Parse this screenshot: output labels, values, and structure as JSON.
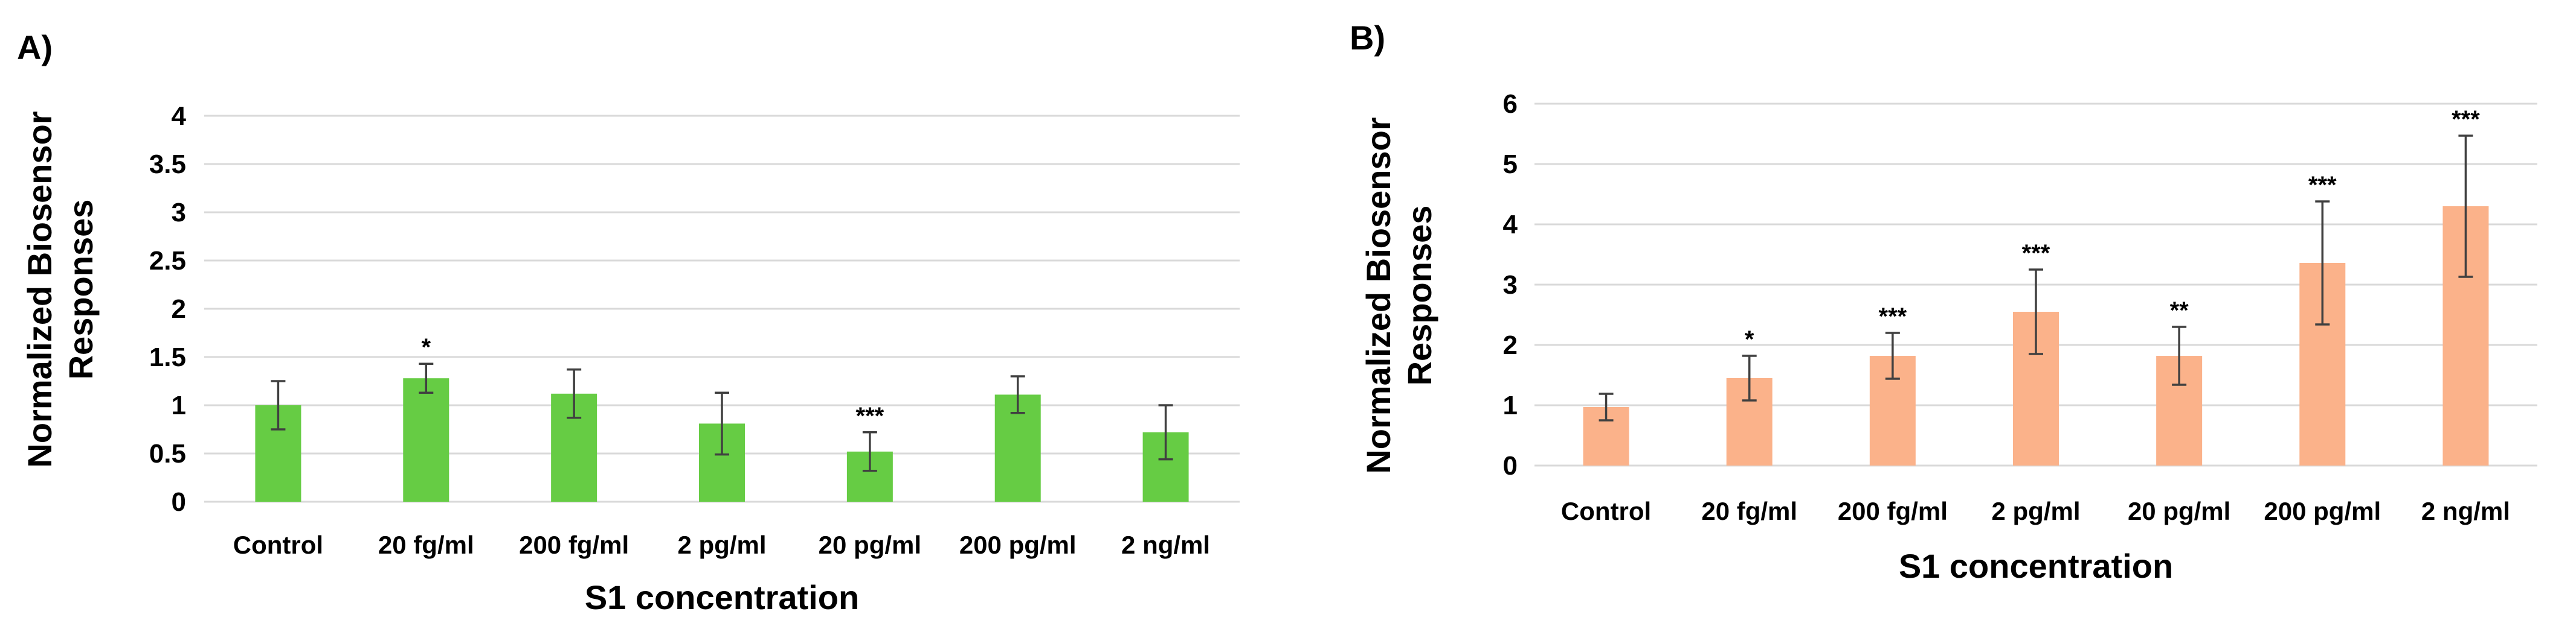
{
  "chart_data": [
    {
      "type": "bar",
      "panel_label": "A)",
      "title": "",
      "xlabel": "S1 concentration",
      "ylabel_lines": [
        "Normalized Biosensor",
        "Responses"
      ],
      "categories": [
        "Control",
        "20 fg/ml",
        "200 fg/ml",
        "2 pg/ml",
        "20 pg/ml",
        "200 pg/ml",
        "2 ng/ml"
      ],
      "values": [
        1.0,
        1.28,
        1.12,
        0.81,
        0.52,
        1.11,
        0.72
      ],
      "errors": [
        0.25,
        0.15,
        0.25,
        0.32,
        0.2,
        0.19,
        0.28
      ],
      "significance": [
        "",
        "*",
        "",
        "",
        "***",
        "",
        ""
      ],
      "ylim": [
        0,
        4
      ],
      "yticks": [
        "0",
        "0.5",
        "1",
        "1.5",
        "2",
        "2.5",
        "3",
        "3.5",
        "4"
      ],
      "ytick_values": [
        0,
        0.5,
        1,
        1.5,
        2,
        2.5,
        3,
        3.5,
        4
      ],
      "color": "#66cc44",
      "grid": true
    },
    {
      "type": "bar",
      "panel_label": "B)",
      "title": "",
      "xlabel": "S1 concentration",
      "ylabel_lines": [
        "Normalized Biosensor",
        "Responses"
      ],
      "categories": [
        "Control",
        "20 fg/ml",
        "200 fg/ml",
        "2 pg/ml",
        "20 pg/ml",
        "200 pg/ml",
        "2 ng/ml"
      ],
      "values": [
        0.97,
        1.45,
        1.82,
        2.55,
        1.82,
        3.36,
        4.3
      ],
      "errors": [
        0.22,
        0.37,
        0.38,
        0.7,
        0.48,
        1.02,
        1.17
      ],
      "significance": [
        "",
        "*",
        "***",
        "***",
        "**",
        "***",
        "***"
      ],
      "ylim": [
        0,
        6
      ],
      "yticks": [
        "0",
        "1",
        "2",
        "3",
        "4",
        "5",
        "6"
      ],
      "ytick_values": [
        0,
        1,
        2,
        3,
        4,
        5,
        6
      ],
      "color": "#fbb28a",
      "grid": true
    }
  ]
}
